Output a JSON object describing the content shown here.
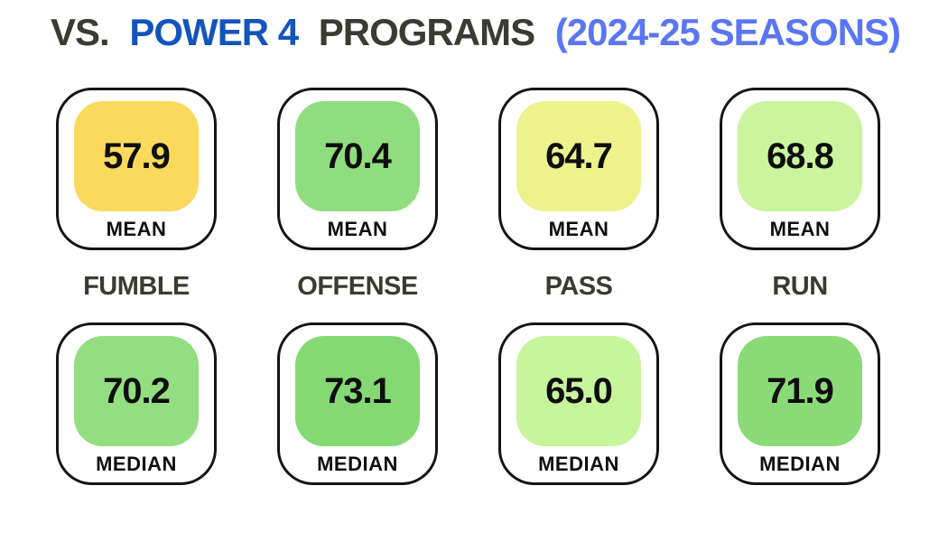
{
  "title": {
    "part1": "VS.",
    "part2": "POWER 4",
    "part3": "PROGRAMS",
    "part4": "(2024-25 SEASONS)"
  },
  "colors": {
    "background": "#FFFFFF",
    "title_dark": "#3B3B33",
    "title_blue": "#1454BC",
    "title_light_blue": "#5B76F2",
    "card_border": "#141414",
    "value_text": "#0E0E0E"
  },
  "columns": [
    {
      "category": "FUMBLE",
      "mean": {
        "label": "MEAN",
        "value": "57.9",
        "color": "#FAD95C"
      },
      "median": {
        "label": "MEDIAN",
        "value": "70.2",
        "color": "#92DE80"
      }
    },
    {
      "category": "OFFENSE",
      "mean": {
        "label": "MEAN",
        "value": "70.4",
        "color": "#90DD7F"
      },
      "median": {
        "label": "MEDIAN",
        "value": "73.1",
        "color": "#84D973"
      }
    },
    {
      "category": "PASS",
      "mean": {
        "label": "MEAN",
        "value": "64.7",
        "color": "#EDF28D"
      },
      "median": {
        "label": "MEDIAN",
        "value": "65.0",
        "color": "#C7F59B"
      }
    },
    {
      "category": "RUN",
      "mean": {
        "label": "MEAN",
        "value": "68.8",
        "color": "#CAF59E"
      },
      "median": {
        "label": "MEDIAN",
        "value": "71.9",
        "color": "#8ADB78"
      }
    }
  ],
  "chart_data": {
    "type": "table",
    "title": "VS. POWER 4 PROGRAMS (2024-25 SEASONS)",
    "categories": [
      "FUMBLE",
      "OFFENSE",
      "PASS",
      "RUN"
    ],
    "series": [
      {
        "name": "MEAN",
        "values": [
          57.9,
          70.4,
          64.7,
          68.8
        ]
      },
      {
        "name": "MEDIAN",
        "values": [
          70.2,
          73.1,
          65.0,
          71.9
        ]
      }
    ],
    "legend_position": "none",
    "grid": false
  }
}
